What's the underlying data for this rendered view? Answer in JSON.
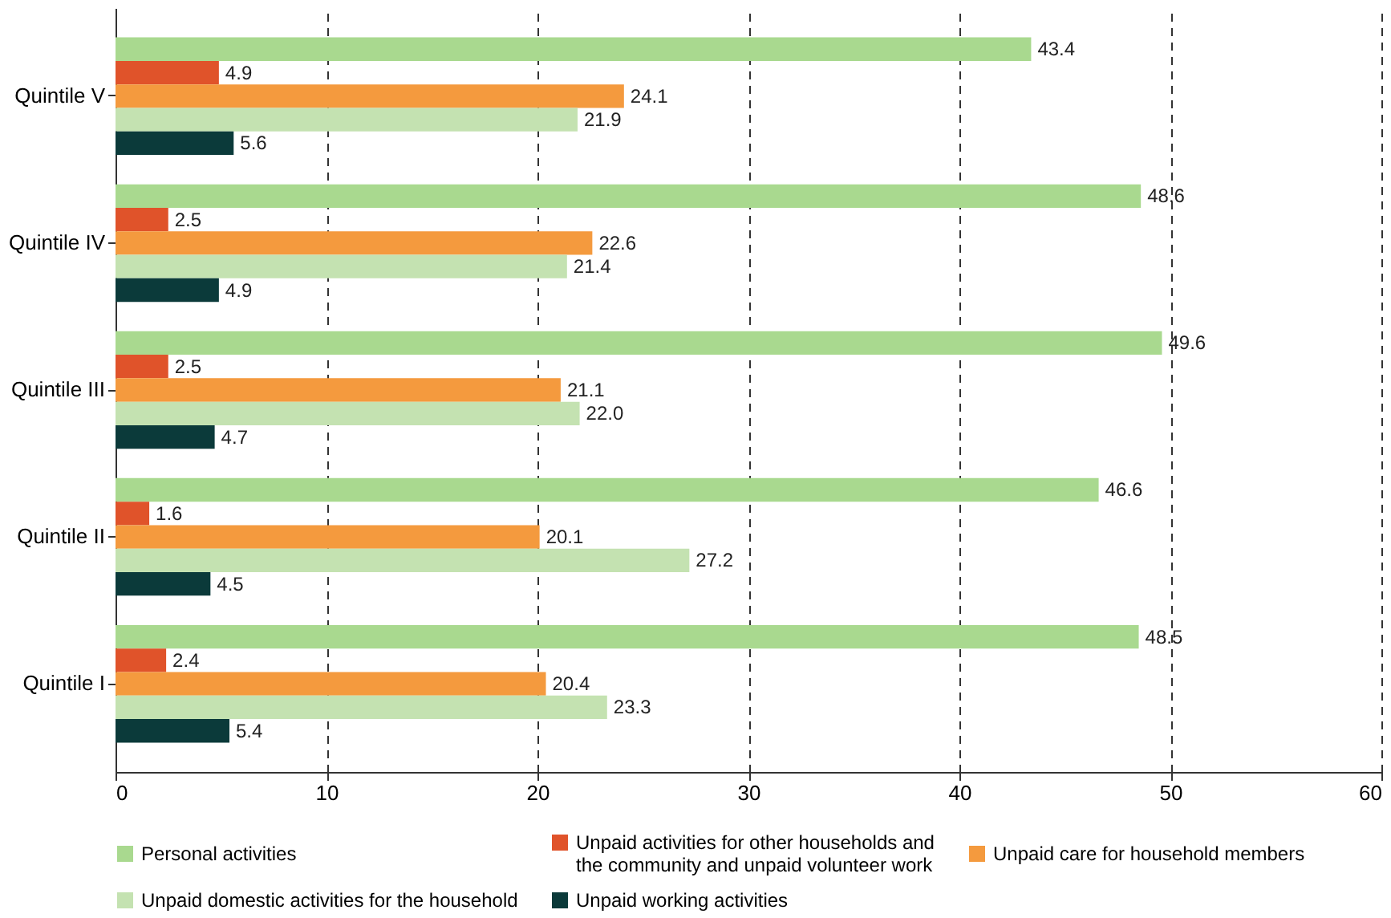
{
  "chart_data": {
    "type": "bar",
    "orientation": "horizontal",
    "categories": [
      "Quintile V",
      "Quintile IV",
      "Quintile III",
      "Quintile II",
      "Quintile I"
    ],
    "series": [
      {
        "name": "Personal activities",
        "color": "#a9d98f",
        "values": [
          43.4,
          48.6,
          49.6,
          46.6,
          48.5
        ],
        "value_labels": [
          "43.4",
          "48.6",
          "49.6",
          "46.6",
          "48.5"
        ]
      },
      {
        "name": "Unpaid activities for other households and the community and unpaid volunteer work",
        "color": "#e0532a",
        "values": [
          4.9,
          2.5,
          2.5,
          1.6,
          2.4
        ],
        "value_labels": [
          "4.9",
          "2.5",
          "2.5",
          "1.6",
          "2.4"
        ]
      },
      {
        "name": "Unpaid care for household members",
        "color": "#f49a3e",
        "values": [
          24.1,
          22.6,
          21.1,
          20.1,
          20.4
        ],
        "value_labels": [
          "24.1",
          "22.6",
          "21.1",
          "20.1",
          "20.4"
        ]
      },
      {
        "name": "Unpaid domestic activities for the household",
        "color": "#c4e2b1",
        "values": [
          21.9,
          21.4,
          22.0,
          27.2,
          23.3
        ],
        "value_labels": [
          "21.9",
          "21.4",
          "22.0",
          "27.2",
          "23.3"
        ]
      },
      {
        "name": "Unpaid working activities",
        "color": "#0b3a3a",
        "values": [
          5.6,
          4.9,
          4.7,
          4.5,
          5.4
        ],
        "value_labels": [
          "5.6",
          "4.9",
          "4.7",
          "4.5",
          "5.4"
        ]
      }
    ],
    "xlim": [
      0,
      60
    ],
    "xticks": [
      0,
      10,
      20,
      30,
      40,
      50,
      60
    ],
    "grid": "x",
    "legend": "bottom"
  }
}
